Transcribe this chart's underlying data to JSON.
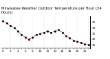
{
  "title": "Milwaukee Weather Outdoor Temperature per Hour (24 Hours)",
  "hours": [
    0,
    1,
    2,
    3,
    4,
    5,
    6,
    7,
    8,
    9,
    10,
    11,
    12,
    13,
    14,
    15,
    16,
    17,
    18,
    19,
    20,
    21,
    22,
    23
  ],
  "temps": [
    36,
    34,
    32,
    30,
    27,
    24,
    22,
    20,
    22,
    24,
    25,
    26,
    27,
    26,
    27,
    28,
    26,
    23,
    21,
    19,
    18,
    17,
    16,
    15
  ],
  "line_color": "#cc0000",
  "marker_color": "#000000",
  "bg_color": "#ffffff",
  "grid_color": "#aaaaaa",
  "title_fontsize": 3.8,
  "tick_fontsize": 3.2,
  "ylim": [
    12,
    40
  ],
  "ytick_values": [
    15,
    20,
    25,
    30,
    35
  ],
  "xtick_step": 2,
  "vgrid_positions": [
    2,
    5,
    8,
    11,
    14,
    17,
    20,
    23
  ]
}
